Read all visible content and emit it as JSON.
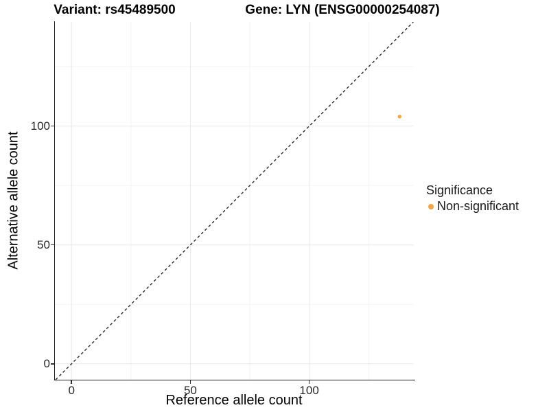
{
  "header": {
    "variant_title": "Variant: rs45489500",
    "gene_title": "Gene: LYN (ENSG00000254087)"
  },
  "chart_data": {
    "type": "scatter",
    "xlabel": "Reference allele count",
    "ylabel": "Alternative allele count",
    "xlim": [
      -7,
      144
    ],
    "ylim": [
      -6.7,
      143.8
    ],
    "x_ticks": [
      0,
      50,
      100
    ],
    "y_ticks": [
      0,
      50,
      100
    ],
    "x_minor_gridlines": [
      25,
      75,
      125
    ],
    "y_minor_gridlines": [
      25,
      75,
      125
    ],
    "grid": "on",
    "identity_line": {
      "equation": "y = x",
      "style": "dashed",
      "color": "#1a1a1a"
    },
    "series": [
      {
        "name": "Non-significant",
        "color": "#FBA33C",
        "point_radius": 2.7,
        "points": [
          {
            "x": 138,
            "y": 104
          }
        ]
      }
    ],
    "legend": {
      "title": "Significance",
      "position": "right",
      "items": [
        {
          "label": "Non-significant",
          "color": "#FBA33C"
        }
      ]
    },
    "colors": {
      "grid_major": "#E8E8E8",
      "grid_minor": "#F3F3F3",
      "axis": "#1a1a1a"
    }
  }
}
